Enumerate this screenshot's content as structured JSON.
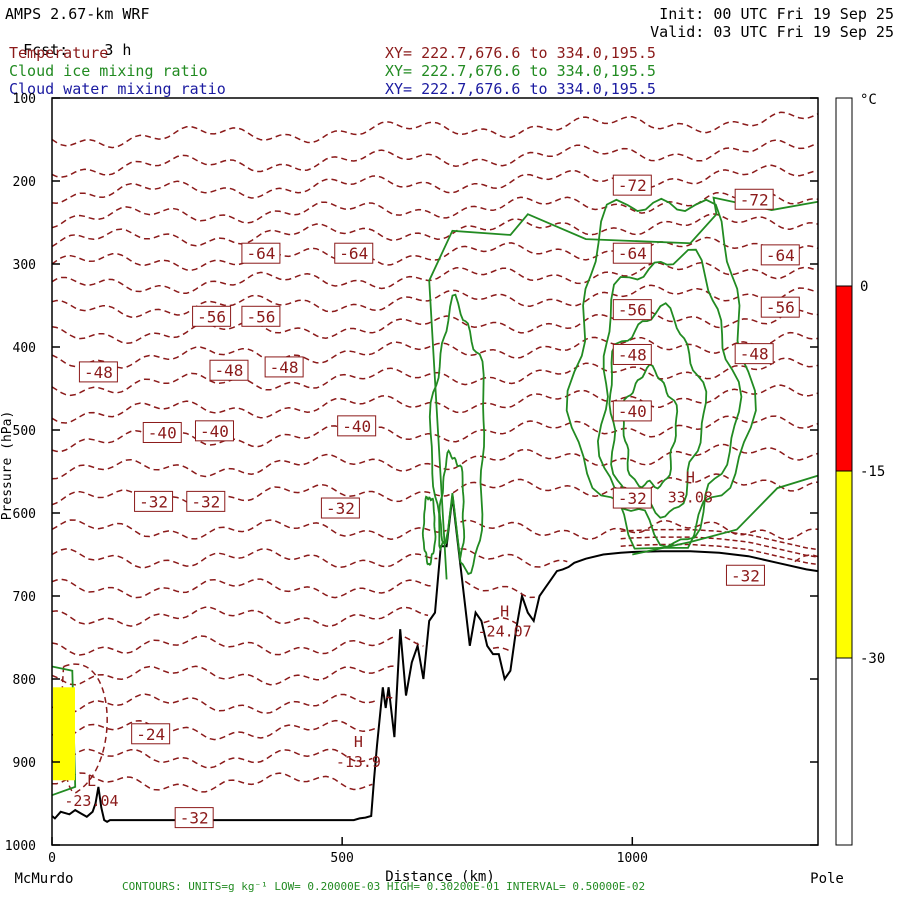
{
  "header": {
    "model": "AMPS 2.67-km WRF",
    "fcst_label": "Fcst:",
    "fcst_value": "3 h",
    "init": "Init: 00 UTC Fri 19 Sep 25",
    "valid": "Valid: 03 UTC Fri 19 Sep 25",
    "fields": [
      {
        "name": "Temperature",
        "xy": "XY= 222.7,676.6 to 334.0,195.5",
        "color": "#8b1a1a"
      },
      {
        "name": "Cloud ice mixing ratio",
        "xy": "XY= 222.7,676.6 to 334.0,195.5",
        "color": "#228b22"
      },
      {
        "name": "Cloud water mixing ratio",
        "xy": "XY= 222.7,676.6 to 334.0,195.5",
        "color": "#1a1aa0"
      }
    ]
  },
  "footer": {
    "contours": "CONTOURS: UNITS=g kg⁻¹ LOW= 0.20000E-03 HIGH= 0.30200E-01 INTERVAL= 0.50000E-02"
  },
  "chart_data": {
    "type": "line",
    "title": "",
    "xlabel": "Distance (km)",
    "ylabel": "Pressure (hPa)",
    "xlim": [
      0,
      1320
    ],
    "ylim": [
      1000,
      100
    ],
    "x_ticks": [
      "0",
      "500",
      "1000"
    ],
    "x_tick_values": [
      0,
      500,
      1000
    ],
    "x_end_labels": {
      "left": "McMurdo",
      "right": "Pole"
    },
    "y_ticks": [
      "100",
      "200",
      "300",
      "400",
      "500",
      "600",
      "700",
      "800",
      "900",
      "1000"
    ],
    "y_tick_values": [
      100,
      200,
      300,
      400,
      500,
      600,
      700,
      800,
      900,
      1000
    ],
    "colorbar": {
      "unit": "°C",
      "labels": [
        "0",
        "-15",
        "-30"
      ],
      "bands": [
        {
          "from": 0,
          "to": -15,
          "color": "#ff0000"
        },
        {
          "from": -15,
          "to": -30,
          "color": "#ffff00"
        }
      ]
    },
    "temperature_labels": [
      {
        "text": "-72",
        "x": 1000,
        "p": 205
      },
      {
        "text": "-72",
        "x": 1210,
        "p": 222
      },
      {
        "text": "-64",
        "x": 360,
        "p": 287
      },
      {
        "text": "-64",
        "x": 520,
        "p": 287
      },
      {
        "text": "-64",
        "x": 1000,
        "p": 287
      },
      {
        "text": "-64",
        "x": 1255,
        "p": 289
      },
      {
        "text": "-56",
        "x": 275,
        "p": 363
      },
      {
        "text": "-56",
        "x": 360,
        "p": 363
      },
      {
        "text": "-56",
        "x": 1000,
        "p": 355
      },
      {
        "text": "-56",
        "x": 1255,
        "p": 352
      },
      {
        "text": "-48",
        "x": 80,
        "p": 430
      },
      {
        "text": "-48",
        "x": 305,
        "p": 428
      },
      {
        "text": "-48",
        "x": 400,
        "p": 424
      },
      {
        "text": "-48",
        "x": 1000,
        "p": 409
      },
      {
        "text": "-48",
        "x": 1210,
        "p": 408
      },
      {
        "text": "-40",
        "x": 190,
        "p": 503
      },
      {
        "text": "-40",
        "x": 280,
        "p": 501
      },
      {
        "text": "-40",
        "x": 525,
        "p": 495
      },
      {
        "text": "-40",
        "x": 1000,
        "p": 477
      },
      {
        "text": "-32",
        "x": 175,
        "p": 586
      },
      {
        "text": "-32",
        "x": 265,
        "p": 586
      },
      {
        "text": "-32",
        "x": 497,
        "p": 594
      },
      {
        "text": "-32",
        "x": 1000,
        "p": 582
      },
      {
        "text": "-24",
        "x": 170,
        "p": 866
      },
      {
        "text": "-32",
        "x": 245,
        "p": 967
      },
      {
        "text": "-32",
        "x": 1195,
        "p": 675
      }
    ],
    "extrema": [
      {
        "mark": "H",
        "value": "-13.9",
        "x": 528,
        "p": 894
      },
      {
        "mark": "H",
        "value": "-24.07",
        "x": 780,
        "p": 737
      },
      {
        "mark": "H",
        "value": "33.08",
        "x": 1100,
        "p": 575
      },
      {
        "mark": "L",
        "value": "-23.04",
        "x": 68,
        "p": 941
      }
    ],
    "terrain": {
      "x": [
        0,
        5,
        15,
        30,
        40,
        50,
        60,
        70,
        75,
        80,
        85,
        90,
        95,
        100,
        105,
        110,
        115,
        120,
        130,
        140,
        150,
        160,
        170,
        180,
        190,
        200,
        210,
        220,
        230,
        240,
        250,
        260,
        270,
        280,
        290,
        300,
        310,
        320,
        330,
        340,
        350,
        360,
        370,
        380,
        390,
        400,
        410,
        420,
        430,
        440,
        450,
        460,
        470,
        480,
        490,
        500,
        510,
        520,
        530,
        540,
        550,
        555,
        560,
        570,
        575,
        580,
        590,
        600,
        610,
        620,
        630,
        640,
        650,
        660,
        670,
        680,
        690,
        700,
        710,
        720,
        730,
        740,
        750,
        760,
        770,
        780,
        790,
        800,
        810,
        820,
        830,
        840,
        850,
        860,
        870,
        880,
        890,
        900,
        920,
        950,
        980,
        1000,
        1050,
        1100,
        1150,
        1200,
        1250,
        1300,
        1320
      ],
      "p": [
        965,
        968,
        960,
        963,
        958,
        962,
        966,
        960,
        950,
        930,
        955,
        970,
        972,
        970,
        970,
        970,
        970,
        970,
        970,
        970,
        970,
        970,
        970,
        970,
        970,
        970,
        970,
        970,
        970,
        970,
        970,
        970,
        970,
        970,
        970,
        970,
        970,
        970,
        970,
        970,
        970,
        970,
        970,
        970,
        970,
        970,
        970,
        970,
        970,
        970,
        970,
        970,
        970,
        970,
        970,
        970,
        970,
        970,
        968,
        967,
        965,
        920,
        880,
        810,
        835,
        810,
        870,
        740,
        820,
        780,
        760,
        800,
        730,
        720,
        640,
        640,
        580,
        640,
        700,
        760,
        720,
        730,
        760,
        770,
        770,
        800,
        790,
        740,
        700,
        720,
        730,
        700,
        690,
        680,
        670,
        668,
        665,
        660,
        655,
        650,
        648,
        647,
        646,
        646,
        648,
        652,
        660,
        668,
        670
      ]
    },
    "ice_colorbar_note": "",
    "series": []
  }
}
